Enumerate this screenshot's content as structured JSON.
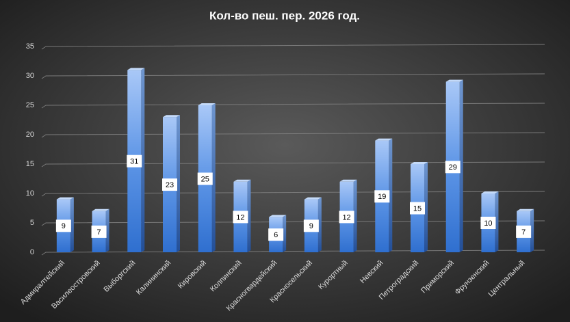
{
  "chart_data": {
    "type": "bar3d",
    "title": "Кол-во  пеш. пер. 2026 год.",
    "categories": [
      "Адмиралтейский",
      "Василеостровский",
      "Выборгский",
      "Калининский",
      "Кировский",
      "Колпинский",
      "Красногвардейский",
      "Красносельский",
      "Курортный",
      "Невский",
      "Петроградский",
      "Приморский",
      "Фрунзенский",
      "Центральный"
    ],
    "values": [
      9,
      7,
      31,
      23,
      25,
      12,
      6,
      9,
      12,
      19,
      15,
      29,
      10,
      7
    ],
    "color": "#4a86e0",
    "ylim": [
      0,
      35
    ],
    "yticks": [
      0,
      5,
      10,
      15,
      20,
      25,
      30,
      35
    ],
    "grid": true
  }
}
